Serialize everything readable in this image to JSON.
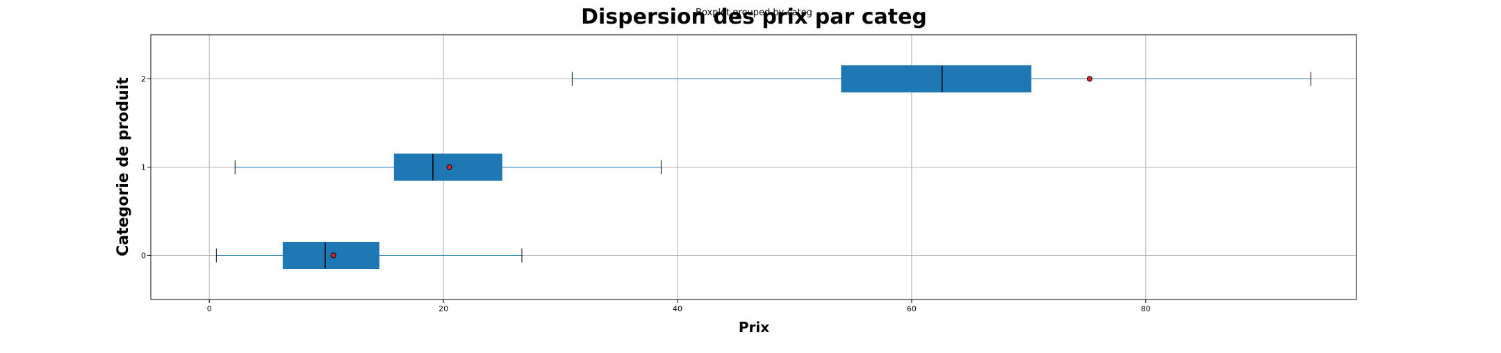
{
  "figure": {
    "suptitle": "Boxplot grouped by categ",
    "title": "Dispersion des prix par categ"
  },
  "chart_data": {
    "type": "box",
    "orientation": "horizontal",
    "title": "Dispersion des prix par categ",
    "suptitle": "Boxplot grouped by categ",
    "xlabel": "Prix",
    "ylabel": "Categorie de produit",
    "xlim": [
      -5,
      98
    ],
    "ylim": [
      -0.5,
      2.5
    ],
    "xticks": [
      0,
      20,
      40,
      60,
      80
    ],
    "yticks": [
      0,
      1,
      2
    ],
    "grid": true,
    "box_color": "#1f77b4",
    "median_color": "#000000",
    "mean_marker_color": "#d62728",
    "categories": [
      "0",
      "1",
      "2"
    ],
    "boxes": [
      {
        "category": "0",
        "whisker_low": 0.6,
        "q1": 6.3,
        "median": 9.9,
        "q3": 14.5,
        "whisker_high": 26.7,
        "mean": 10.6
      },
      {
        "category": "1",
        "whisker_low": 2.2,
        "q1": 15.8,
        "median": 19.1,
        "q3": 25.0,
        "whisker_high": 38.6,
        "mean": 20.5
      },
      {
        "category": "2",
        "whisker_low": 31.0,
        "q1": 54.0,
        "median": 62.6,
        "q3": 70.2,
        "whisker_high": 94.1,
        "mean": 75.2
      }
    ]
  }
}
